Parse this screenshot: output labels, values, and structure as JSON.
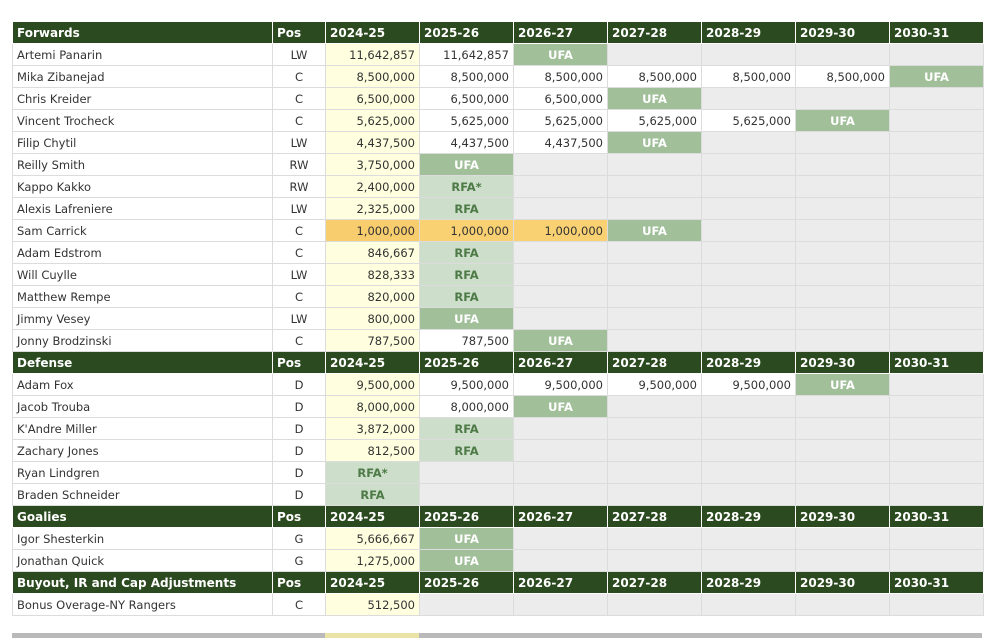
{
  "seasons": [
    "2024-25",
    "2025-26",
    "2026-27",
    "2027-28",
    "2028-29",
    "2029-30",
    "2030-31"
  ],
  "pos_label": "Pos",
  "sections": [
    {
      "title": "Forwards",
      "rows": [
        {
          "name": "Artemi Panarin",
          "pos": "LW",
          "cells": [
            "11,642,857",
            "11,642,857",
            "UFA",
            "",
            "",
            "",
            ""
          ]
        },
        {
          "name": "Mika Zibanejad",
          "pos": "C",
          "cells": [
            "8,500,000",
            "8,500,000",
            "8,500,000",
            "8,500,000",
            "8,500,000",
            "8,500,000",
            "UFA"
          ]
        },
        {
          "name": "Chris Kreider",
          "pos": "C",
          "cells": [
            "6,500,000",
            "6,500,000",
            "6,500,000",
            "UFA",
            "",
            "",
            ""
          ]
        },
        {
          "name": "Vincent Trocheck",
          "pos": "C",
          "cells": [
            "5,625,000",
            "5,625,000",
            "5,625,000",
            "5,625,000",
            "5,625,000",
            "UFA",
            ""
          ]
        },
        {
          "name": "Filip Chytil",
          "pos": "LW",
          "cells": [
            "4,437,500",
            "4,437,500",
            "4,437,500",
            "UFA",
            "",
            "",
            ""
          ]
        },
        {
          "name": "Reilly Smith",
          "pos": "RW",
          "cells": [
            "3,750,000",
            "UFA",
            "",
            "",
            "",
            "",
            ""
          ]
        },
        {
          "name": "Kappo Kakko",
          "pos": "RW",
          "cells": [
            "2,400,000",
            "RFA*",
            "",
            "",
            "",
            "",
            ""
          ]
        },
        {
          "name": "Alexis Lafreniere",
          "pos": "LW",
          "cells": [
            "2,325,000",
            "RFA",
            "",
            "",
            "",
            "",
            ""
          ]
        },
        {
          "name": "Sam Carrick",
          "pos": "C",
          "cells": [
            "1,000,000",
            "1,000,000",
            "1,000,000",
            "UFA",
            "",
            "",
            ""
          ]
        },
        {
          "name": "Adam Edstrom",
          "pos": "C",
          "cells": [
            "846,667",
            "RFA",
            "",
            "",
            "",
            "",
            ""
          ]
        },
        {
          "name": "Will Cuylle",
          "pos": "LW",
          "cells": [
            "828,333",
            "RFA",
            "",
            "",
            "",
            "",
            ""
          ]
        },
        {
          "name": "Matthew Rempe",
          "pos": "C",
          "cells": [
            "820,000",
            "RFA",
            "",
            "",
            "",
            "",
            ""
          ]
        },
        {
          "name": "Jimmy Vesey",
          "pos": "LW",
          "cells": [
            "800,000",
            "UFA",
            "",
            "",
            "",
            "",
            ""
          ]
        },
        {
          "name": "Jonny Brodzinski",
          "pos": "C",
          "cells": [
            "787,500",
            "787,500",
            "UFA",
            "",
            "",
            "",
            ""
          ]
        }
      ]
    },
    {
      "title": "Defense",
      "rows": [
        {
          "name": "Adam Fox",
          "pos": "D",
          "cells": [
            "9,500,000",
            "9,500,000",
            "9,500,000",
            "9,500,000",
            "9,500,000",
            "UFA",
            ""
          ]
        },
        {
          "name": "Jacob Trouba",
          "pos": "D",
          "cells": [
            "8,000,000",
            "8,000,000",
            "UFA",
            "",
            "",
            "",
            ""
          ]
        },
        {
          "name": "K'Andre Miller",
          "pos": "D",
          "cells": [
            "3,872,000",
            "RFA",
            "",
            "",
            "",
            "",
            ""
          ]
        },
        {
          "name": "Zachary Jones",
          "pos": "D",
          "cells": [
            "812,500",
            "RFA",
            "",
            "",
            "",
            "",
            ""
          ]
        },
        {
          "name": "Ryan Lindgren",
          "pos": "D",
          "cells": [
            "RFA*",
            "",
            "",
            "",
            "",
            "",
            ""
          ]
        },
        {
          "name": "Braden Schneider",
          "pos": "D",
          "cells": [
            "RFA",
            "",
            "",
            "",
            "",
            "",
            ""
          ]
        }
      ]
    },
    {
      "title": "Goalies",
      "rows": [
        {
          "name": "Igor Shesterkin",
          "pos": "G",
          "cells": [
            "5,666,667",
            "UFA",
            "",
            "",
            "",
            "",
            ""
          ]
        },
        {
          "name": "Jonathan Quick",
          "pos": "G",
          "cells": [
            "1,275,000",
            "UFA",
            "",
            "",
            "",
            "",
            ""
          ]
        }
      ]
    },
    {
      "title": "Buyout, IR and Cap Adjustments",
      "rows": [
        {
          "name": "Bonus Overage-NY Rangers",
          "pos": "C",
          "cells": [
            "512,500",
            "",
            "",
            "",
            "",
            "",
            ""
          ]
        }
      ]
    }
  ],
  "colors": {
    "header_bg": "#2c4a1f",
    "ufa": "#a1bf99",
    "rfa": "#cddfca",
    "current_season": "#ffffe0",
    "highlight": "#f7cd6e",
    "empty": "#ececec"
  }
}
